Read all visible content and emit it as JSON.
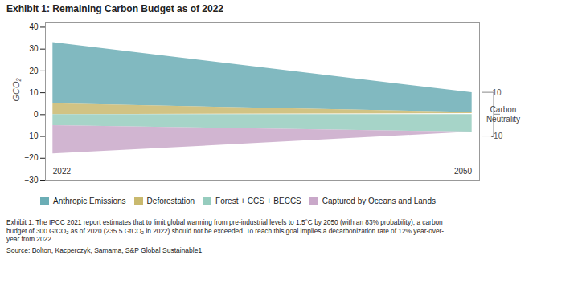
{
  "chart_data": {
    "type": "area",
    "title": "Exhibit 1: Remaining Carbon Budget as of 2022",
    "ylabel": "GCO₂",
    "x": [
      2022,
      2050
    ],
    "xlim": [
      2021.5,
      2050.5
    ],
    "ylim": [
      -30,
      42
    ],
    "yticks": [
      -30,
      -20,
      -10,
      0,
      10,
      20,
      30,
      40
    ],
    "tick_labels": "y",
    "legend": "bottom",
    "series": [
      {
        "name": "Anthropic Emissions",
        "color": "#6badb5",
        "lower": [
          5,
          1
        ],
        "values": [
          33,
          10
        ]
      },
      {
        "name": "Deforestation",
        "color": "#c9b96e",
        "lower": [
          0,
          0.5
        ],
        "values": [
          5,
          1
        ]
      },
      {
        "name": "Forest + CCS + BECCS",
        "color": "#96ccbe",
        "lower": [
          -5,
          -8
        ],
        "values": [
          0,
          0
        ]
      },
      {
        "name": "Captured by Oceans and Lands",
        "color": "#c9a8c9",
        "lower": [
          -18,
          -8
        ],
        "values": [
          -5,
          -8
        ]
      }
    ],
    "annotations": [
      {
        "text": "2022",
        "x": 2022
      },
      {
        "text": "2050",
        "x": 2050
      },
      {
        "text": "Carbon\nNeutrality",
        "y1": -10,
        "y2": 10
      }
    ],
    "footnote": [
      "Exhibit 1: The IPCC 2021 report estimates that to limit global warming from pre-industrial levels to 1.5°C by 2050 (with an 83% probability), a carbon",
      "budget of 300 GtCO₂ as of 2020 (235.5 GtCO₂ in 2022) should not be exceeded. To reach this goal implies a decarbonization rate of 12% year-over-",
      "year from 2022."
    ],
    "source": "Source: Bolton, Kacperczyk, Samama, S&P Global Sustainable1"
  }
}
